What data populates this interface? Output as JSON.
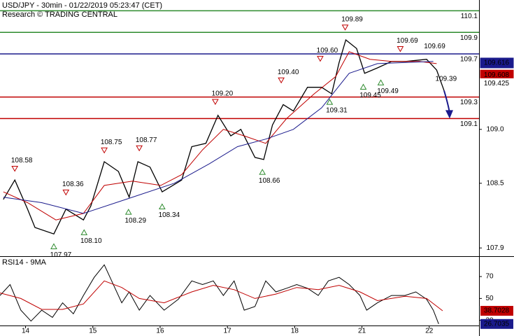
{
  "chart_data": {
    "type": "line",
    "title": "USD/JPY - 30min - 01/22/2019 05:23:47 (CET)",
    "subtitle": "Research © TRADING CENTRAL",
    "xlim": [
      -0.38,
      6.74
    ],
    "xticks": [
      {
        "value": 0,
        "label": "14"
      },
      {
        "value": 1,
        "label": "15"
      },
      {
        "value": 2,
        "label": "16"
      },
      {
        "value": 3,
        "label": "17"
      },
      {
        "value": 4,
        "label": "18"
      },
      {
        "value": 5,
        "label": "21"
      },
      {
        "value": 6,
        "label": "22"
      }
    ],
    "ylim": [
      107.83,
      110.2
    ],
    "yticks": [
      {
        "value": 109,
        "label": "109.0"
      },
      108.5,
      107.9
    ],
    "series": [
      {
        "name": "price",
        "color": "#000000",
        "x": [
          -0.33,
          -0.16,
          0.03,
          0.14,
          0.42,
          0.6,
          0.86,
          0.97,
          1.17,
          1.38,
          1.54,
          1.67,
          1.85,
          2.03,
          2.32,
          2.47,
          2.68,
          2.86,
          3.05,
          3.2,
          3.41,
          3.54,
          3.67,
          3.83,
          3.98,
          4.19,
          4.4,
          4.55,
          4.66,
          4.76,
          4.92,
          5.04,
          5.23,
          5.44,
          5.65,
          5.96,
          6.11,
          6.22
        ],
        "values": [
          108.35,
          108.53,
          108.26,
          108.09,
          108.03,
          108.26,
          108.16,
          108.29,
          108.7,
          108.61,
          108.37,
          108.7,
          108.65,
          108.42,
          108.53,
          108.84,
          108.87,
          109.13,
          108.94,
          109.0,
          108.74,
          108.72,
          109.04,
          109.23,
          109.17,
          109.39,
          109.39,
          109.33,
          109.62,
          109.83,
          109.75,
          109.52,
          109.57,
          109.63,
          109.63,
          109.65,
          109.55,
          109.36
        ]
      },
      {
        "name": "ma-fast",
        "color": "#c00000",
        "x": [
          -0.33,
          0.03,
          0.45,
          0.86,
          1.17,
          1.59,
          2.01,
          2.32,
          2.63,
          2.94,
          3.25,
          3.57,
          3.88,
          4.29,
          4.61,
          4.81,
          5.12,
          5.44,
          5.85,
          6.11
        ],
        "values": [
          108.42,
          108.32,
          108.16,
          108.22,
          108.48,
          108.52,
          108.48,
          108.58,
          108.81,
          109.0,
          108.94,
          108.87,
          109.1,
          109.33,
          109.49,
          109.72,
          109.65,
          109.63,
          109.63,
          109.61
        ]
      },
      {
        "name": "ma-slow",
        "color": "#1a1a8c",
        "x": [
          -0.33,
          0.24,
          0.86,
          1.49,
          2.21,
          2.73,
          3.15,
          3.57,
          3.98,
          4.4,
          4.81,
          5.23,
          6.06
        ],
        "values": [
          108.37,
          108.32,
          108.22,
          108.35,
          108.5,
          108.68,
          108.84,
          108.91,
          109.0,
          109.2,
          109.52,
          109.61,
          109.63
        ]
      }
    ],
    "levels": [
      {
        "value": 110.1,
        "color": "#2e8b2e"
      },
      {
        "value": 109.9,
        "color": "#2e8b2e"
      },
      {
        "value": 109.7,
        "color": "#1a1a8c"
      },
      {
        "value": 109.3,
        "color": "#c00000"
      },
      {
        "value": 109.1,
        "color": "#c00000"
      }
    ],
    "annotations": [
      {
        "label": "108.58",
        "x": -0.16,
        "value": 108.58,
        "kind": "down"
      },
      {
        "label": "108.36",
        "x": 0.6,
        "value": 108.36,
        "kind": "down"
      },
      {
        "label": "108.75",
        "x": 1.17,
        "value": 108.75,
        "kind": "down"
      },
      {
        "label": "108.77",
        "x": 1.69,
        "value": 108.77,
        "kind": "down"
      },
      {
        "label": "109.20",
        "x": 2.82,
        "value": 109.2,
        "kind": "down"
      },
      {
        "label": "109.40",
        "x": 3.8,
        "value": 109.4,
        "kind": "down"
      },
      {
        "label": "109.60",
        "x": 4.38,
        "value": 109.6,
        "kind": "down"
      },
      {
        "label": "109.89",
        "x": 4.75,
        "value": 109.89,
        "kind": "down"
      },
      {
        "label": "109.69",
        "x": 5.57,
        "value": 109.69,
        "kind": "down"
      },
      {
        "label": "109.69",
        "x": 6.08,
        "value": 109.69,
        "kind": "text"
      },
      {
        "label": "107.97",
        "x": 0.42,
        "value": 107.97,
        "kind": "up"
      },
      {
        "label": "108.10",
        "x": 0.87,
        "value": 108.1,
        "kind": "up"
      },
      {
        "label": "108.29",
        "x": 1.53,
        "value": 108.29,
        "kind": "up"
      },
      {
        "label": "108.34",
        "x": 2.03,
        "value": 108.34,
        "kind": "up"
      },
      {
        "label": "108.66",
        "x": 3.52,
        "value": 108.66,
        "kind": "up"
      },
      {
        "label": "109.31",
        "x": 4.52,
        "value": 109.31,
        "kind": "up"
      },
      {
        "label": "109.45",
        "x": 5.02,
        "value": 109.45,
        "kind": "up"
      },
      {
        "label": "109.49",
        "x": 5.28,
        "value": 109.49,
        "kind": "up"
      },
      {
        "label": "109.39",
        "x": 6.25,
        "value": 109.39,
        "kind": "text"
      }
    ],
    "price_tags": [
      {
        "value": 109.616,
        "color": "#1a1a8c",
        "text_color": "#ffffff"
      },
      {
        "value": 109.608,
        "color": "#c00000",
        "text_color": "#ffffff"
      },
      {
        "value": 109.425,
        "color": "#ffffff",
        "text_color": "#000000"
      }
    ],
    "rsi": {
      "title": "RSI14 - 9MA",
      "ylim": [
        25.3,
        87.3
      ],
      "yticks": [
        70,
        50,
        30
      ],
      "series": [
        {
          "name": "rsi",
          "color": "#000000",
          "x": [
            -0.38,
            -0.23,
            -0.07,
            0.08,
            0.24,
            0.4,
            0.55,
            0.71,
            0.86,
            1.02,
            1.17,
            1.28,
            1.43,
            1.54,
            1.69,
            1.85,
            2.06,
            2.27,
            2.47,
            2.63,
            2.79,
            2.94,
            3.1,
            3.25,
            3.41,
            3.57,
            3.72,
            3.88,
            4.03,
            4.19,
            4.35,
            4.5,
            4.66,
            4.81,
            4.97,
            5.07,
            5.23,
            5.44,
            5.64,
            5.8,
            5.96,
            6.06,
            6.14
          ],
          "values": [
            52.7,
            62.7,
            39.3,
            29.3,
            39.3,
            32.7,
            46,
            36,
            52.7,
            69.3,
            80.7,
            66,
            46,
            56,
            39.3,
            52.7,
            39.3,
            49.3,
            66,
            62.7,
            66,
            52.7,
            66,
            39.3,
            42.7,
            66,
            56,
            59.3,
            62.7,
            59.3,
            52.7,
            66,
            69.3,
            62.7,
            52.7,
            39.3,
            46,
            52.7,
            52.7,
            56,
            49.3,
            39.3,
            26.7
          ]
        },
        {
          "name": "rsi-ma",
          "color": "#c00000",
          "x": [
            -0.38,
            -0.07,
            0.24,
            0.55,
            0.86,
            1.17,
            1.43,
            1.69,
            2.06,
            2.47,
            2.79,
            3.1,
            3.41,
            3.72,
            4.03,
            4.35,
            4.66,
            4.97,
            5.23,
            5.64,
            5.96,
            6.2
          ],
          "values": [
            55,
            50,
            40,
            40,
            45,
            66,
            60,
            50,
            46,
            56,
            62,
            58,
            50,
            54,
            60,
            58,
            62,
            56,
            48,
            52,
            50,
            38.7
          ]
        }
      ],
      "tags": [
        {
          "label": "38.7028",
          "value": 38.7,
          "color": "#c00000"
        },
        {
          "label": "26.7035",
          "value": 26.7,
          "color": "#1a1a8c"
        }
      ]
    }
  }
}
